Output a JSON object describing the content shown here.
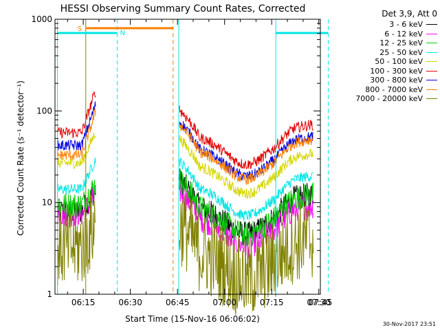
{
  "chart_data": {
    "type": "line",
    "title": "HESSI Observing Summary Count Rates, Corrected",
    "xlabel": "Start Time (15-Nov-16 06:06:02)",
    "ylabel": "Corrected Count Rate (s⁻¹ detector⁻¹)",
    "ylog": true,
    "ylim": [
      1,
      1000
    ],
    "xlim_minutes": [
      6.0,
      90.5
    ],
    "x_ticks": [
      {
        "label": "06:15",
        "min": 15
      },
      {
        "label": "06:30",
        "min": 30
      },
      {
        "label": "06:45",
        "min": 45
      },
      {
        "label": "07:00",
        "min": 60
      },
      {
        "label": "07:15",
        "min": 75
      },
      {
        "label": "07:30",
        "min": 90
      },
      {
        "label": "07:45",
        "min": 105
      }
    ],
    "y_ticks": [
      {
        "label": "1",
        "v": 1
      },
      {
        "label": "10",
        "v": 10
      },
      {
        "label": "100",
        "v": 100
      },
      {
        "label": "1000",
        "v": 1000
      }
    ],
    "legend_title": "Det 3,9, Att 0",
    "series": [
      {
        "name": "3 - 6 keV",
        "color": "#000000",
        "pre": 8,
        "post": 10,
        "peak": 14
      },
      {
        "name": "6 - 12 keV",
        "color": "#ff00ff",
        "pre": 7.5,
        "post": 7.5,
        "peak": 12
      },
      {
        "name": "12 - 25 keV",
        "color": "#00cc00",
        "pre": 9.5,
        "post": 10,
        "peak": 16
      },
      {
        "name": "25 - 50 keV",
        "color": "#00e5e5",
        "pre": 14,
        "post": 16,
        "peak": 30
      },
      {
        "name": "50 - 100 keV",
        "color": "#d6d600",
        "pre": 27,
        "post": 28,
        "peak": 60
      },
      {
        "name": "100 - 300 keV",
        "color": "#e00000",
        "pre": 58,
        "post": 58,
        "peak": 170
      },
      {
        "name": "300 - 800 keV",
        "color": "#0000e0",
        "pre": 42,
        "post": 43,
        "peak": 120
      },
      {
        "name": "800 - 7000 keV",
        "color": "#ff7f00",
        "pre": 33,
        "post": 40,
        "peak": 100
      },
      {
        "name": "7000 - 20000 keV",
        "color": "#808000",
        "pre": 3.3,
        "post": 3.3,
        "peak": 6
      }
    ],
    "data_gap_minutes": [
      19.0,
      45.4
    ],
    "markers": {
      "solid_cyan": [
        6.8,
        45.4,
        76.3
      ],
      "dashed_cyan": [
        25.8,
        93.0
      ],
      "dashed_orange": [
        43.6
      ],
      "solid_olive": [
        15.8
      ],
      "S_label": "S",
      "N_label": "N",
      "S_bar_minutes": [
        15.8,
        43.6
      ],
      "N_bar_minutes_1": [
        6.8,
        25.8
      ],
      "N_bar_minutes_2": [
        76.3,
        93.0
      ]
    }
  },
  "footer_date": "30-Nov-2017 23:51"
}
